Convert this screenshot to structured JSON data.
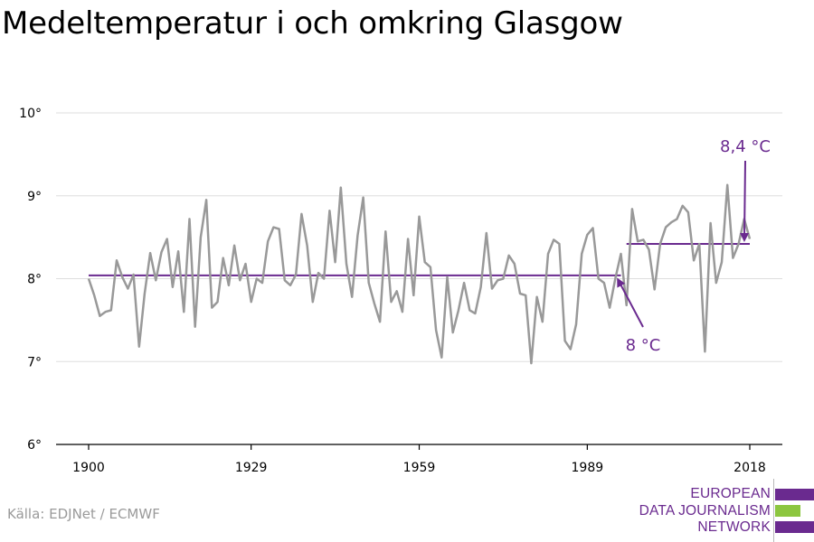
{
  "title": "Medeltemperatur i och omkring Glasgow",
  "source": "Källa: EDJNet / ECMWF",
  "logo": {
    "line1": "EUROPEAN",
    "line2": "DATA JOURNALISM",
    "line3": "NETWORK"
  },
  "colors": {
    "series": "#999999",
    "accent": "#6a2a8f",
    "logo_green": "#8cc63f",
    "grid": "#dddddd"
  },
  "chart_data": {
    "type": "line",
    "title": "Medeltemperatur i och omkring Glasgow",
    "xlabel": "",
    "ylabel": "",
    "xlim": [
      1900,
      2018
    ],
    "ylim": [
      6,
      10
    ],
    "grid": true,
    "x_ticks": [
      1900,
      1929,
      1959,
      1989,
      2018
    ],
    "x_tick_labels": [
      "1900",
      "1929",
      "1959",
      "1989",
      "2018"
    ],
    "y_ticks": [
      6,
      7,
      8,
      9,
      10
    ],
    "y_tick_labels": [
      "6°",
      "7°",
      "8°",
      "9°",
      "10°"
    ],
    "series": [
      {
        "x": [
          1900,
          1901,
          1902,
          1903,
          1904,
          1905,
          1906,
          1907,
          1908,
          1909,
          1910,
          1911,
          1912,
          1913,
          1914,
          1915,
          1916,
          1917,
          1918,
          1919,
          1920,
          1921,
          1922,
          1923,
          1924,
          1925,
          1926,
          1927,
          1928,
          1929,
          1930,
          1931,
          1932,
          1933,
          1934,
          1935,
          1936,
          1937,
          1938,
          1939,
          1940,
          1941,
          1942,
          1943,
          1944,
          1945,
          1946,
          1947,
          1948,
          1949,
          1950,
          1951,
          1952,
          1953,
          1954,
          1955,
          1956,
          1957,
          1958,
          1959,
          1960,
          1961,
          1962,
          1963,
          1964,
          1965,
          1966,
          1967,
          1968,
          1969,
          1970,
          1971,
          1972,
          1973,
          1974,
          1975,
          1976,
          1977,
          1978,
          1979,
          1980,
          1981,
          1982,
          1983,
          1984,
          1985,
          1986,
          1987,
          1988,
          1989,
          1990,
          1991,
          1992,
          1993,
          1994,
          1995,
          1996,
          1997,
          1998,
          1999,
          2000,
          2001,
          2002,
          2003,
          2004,
          2005,
          2006,
          2007,
          2008,
          2009,
          2010,
          2011,
          2012,
          2013,
          2014,
          2015,
          2016,
          2017,
          2018
        ],
        "values": [
          8.0,
          7.8,
          7.55,
          7.6,
          7.62,
          8.22,
          8.02,
          7.88,
          8.05,
          7.18,
          7.82,
          8.31,
          7.98,
          8.32,
          8.48,
          7.9,
          8.33,
          7.6,
          8.72,
          7.42,
          8.5,
          8.95,
          7.65,
          7.72,
          8.25,
          7.92,
          8.4,
          7.98,
          8.18,
          7.72,
          8.0,
          7.95,
          8.45,
          8.62,
          8.6,
          7.98,
          7.92,
          8.05,
          8.78,
          8.4,
          7.72,
          8.07,
          8.0,
          8.82,
          8.2,
          9.1,
          8.18,
          7.78,
          8.52,
          8.98,
          7.95,
          7.7,
          7.48,
          8.57,
          7.72,
          7.85,
          7.6,
          8.48,
          7.8,
          8.75,
          8.2,
          8.14,
          7.38,
          7.05,
          8.02,
          7.35,
          7.62,
          7.95,
          7.62,
          7.58,
          7.9,
          8.55,
          7.88,
          7.98,
          8.0,
          8.28,
          8.18,
          7.82,
          7.8,
          6.98,
          7.78,
          7.48,
          8.3,
          8.47,
          8.42,
          7.25,
          7.15,
          7.45,
          8.3,
          8.53,
          8.61,
          8.0,
          7.95,
          7.65,
          8.0,
          8.3,
          7.68,
          8.84,
          8.45,
          8.47,
          8.35,
          7.87,
          8.42,
          8.62,
          8.68,
          8.72,
          8.88,
          8.8,
          8.22,
          8.42,
          7.12,
          8.67,
          7.95,
          8.2,
          9.13,
          8.25,
          8.42,
          8.72,
          8.48
        ]
      }
    ],
    "reference_lines": [
      {
        "label": "8 °C",
        "value": 8.04,
        "from": 1900,
        "to": 1995
      },
      {
        "label": "8,4 °C",
        "value": 8.42,
        "from": 1996,
        "to": 2018
      }
    ]
  }
}
